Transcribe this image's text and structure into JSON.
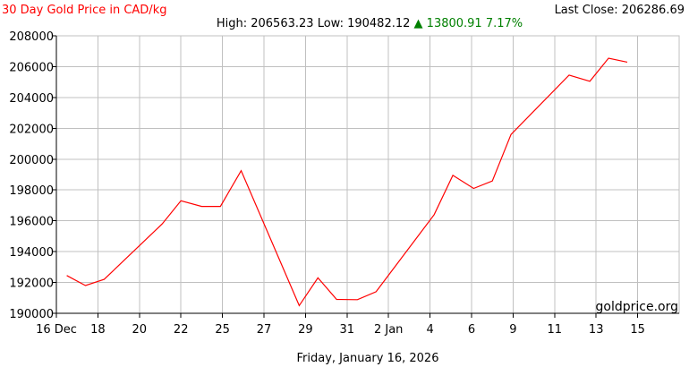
{
  "chart_data": {
    "type": "line",
    "title": "30 Day Gold Price in CAD/kg",
    "last_close_label": "Last Close: 206286.69",
    "stats": {
      "high_label": "High: 206563.23",
      "low_label": "Low: 190482.12",
      "change_arrow": "▲",
      "change_value": "13800.91",
      "change_percent": "7.17%"
    },
    "watermark": "goldprice.org",
    "date_footer": "Friday, January 16, 2026",
    "xlabel": "",
    "ylabel": "",
    "ylim": [
      190000,
      208000
    ],
    "yticks": [
      190000,
      192000,
      194000,
      196000,
      198000,
      200000,
      202000,
      204000,
      206000,
      208000
    ],
    "xlim": [
      0,
      30
    ],
    "xticks": [
      {
        "x": 0,
        "label": "16 Dec"
      },
      {
        "x": 2,
        "label": "18"
      },
      {
        "x": 4,
        "label": "20"
      },
      {
        "x": 6,
        "label": "22"
      },
      {
        "x": 8,
        "label": "25"
      },
      {
        "x": 10,
        "label": "27"
      },
      {
        "x": 12,
        "label": "29"
      },
      {
        "x": 14,
        "label": "31"
      },
      {
        "x": 16,
        "label": "2 Jan"
      },
      {
        "x": 18,
        "label": "4"
      },
      {
        "x": 20,
        "label": "6"
      },
      {
        "x": 22,
        "label": "9"
      },
      {
        "x": 24,
        "label": "11"
      },
      {
        "x": 26,
        "label": "13"
      },
      {
        "x": 28,
        "label": "15"
      }
    ],
    "series": [
      {
        "color": "#ff0000",
        "points": [
          {
            "x": 0.5,
            "y": 192450
          },
          {
            "x": 1.4,
            "y": 191800
          },
          {
            "x": 2.3,
            "y": 192200
          },
          {
            "x": 5.1,
            "y": 195800
          },
          {
            "x": 6.0,
            "y": 197300
          },
          {
            "x": 7.0,
            "y": 196930
          },
          {
            "x": 7.9,
            "y": 196930
          },
          {
            "x": 8.9,
            "y": 199250
          },
          {
            "x": 11.7,
            "y": 190500
          },
          {
            "x": 12.6,
            "y": 192300
          },
          {
            "x": 13.5,
            "y": 190900
          },
          {
            "x": 14.5,
            "y": 190880
          },
          {
            "x": 15.4,
            "y": 191400
          },
          {
            "x": 18.2,
            "y": 196400
          },
          {
            "x": 19.1,
            "y": 198950
          },
          {
            "x": 20.1,
            "y": 198100
          },
          {
            "x": 21.0,
            "y": 198580
          },
          {
            "x": 21.9,
            "y": 201600
          },
          {
            "x": 24.7,
            "y": 205450
          },
          {
            "x": 25.7,
            "y": 205050
          },
          {
            "x": 26.6,
            "y": 206550
          },
          {
            "x": 27.5,
            "y": 206290
          }
        ]
      }
    ],
    "colors": {
      "title": "#ff0000",
      "change": "#008000",
      "grid": "#c0c0c0",
      "axis": "#000000"
    }
  }
}
